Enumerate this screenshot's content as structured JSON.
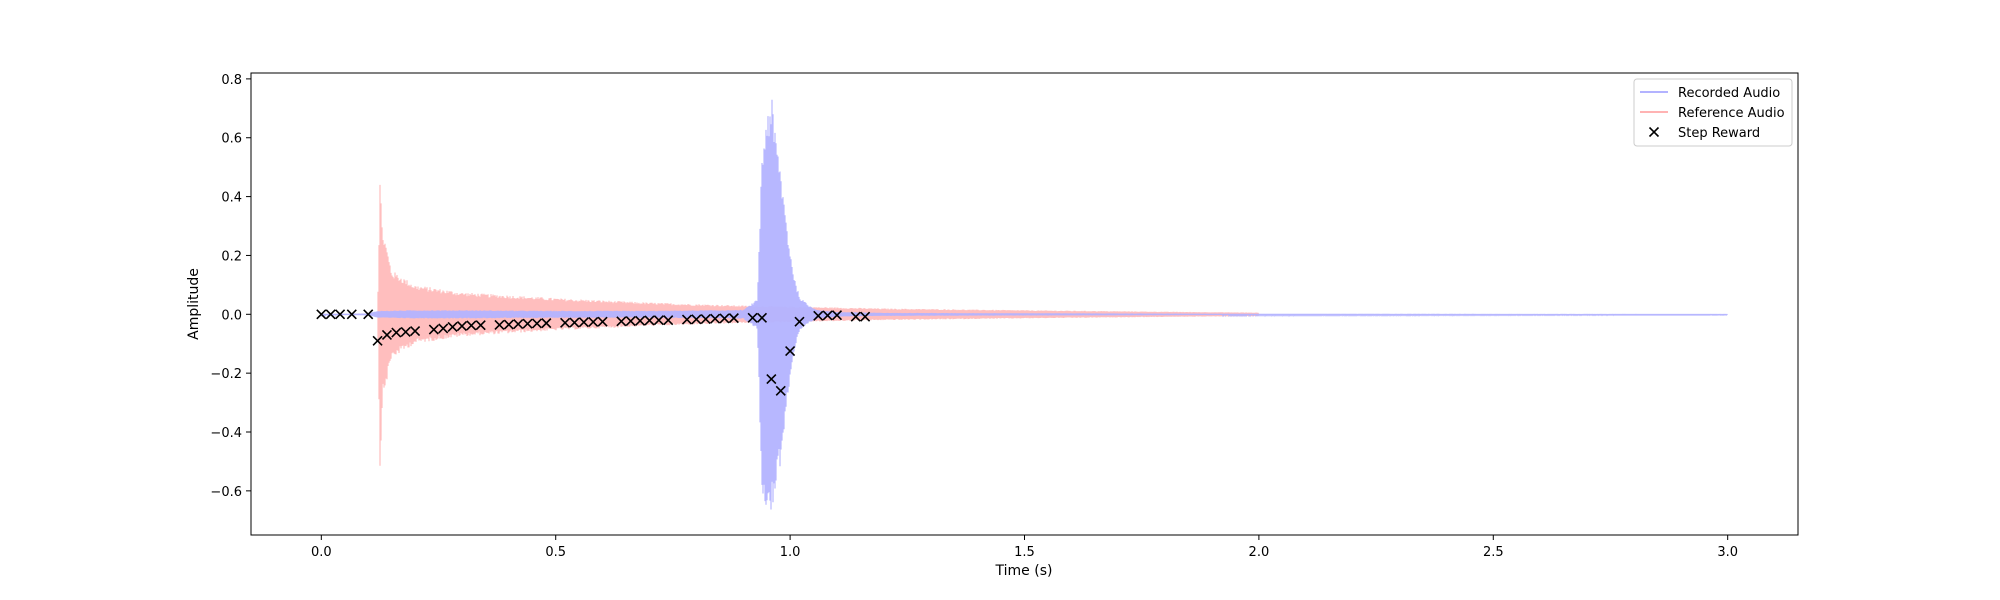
{
  "chart_data": {
    "type": "line",
    "title": "",
    "xlabel": "Time (s)",
    "ylabel": "Amplitude",
    "xlim": [
      -0.15,
      3.15
    ],
    "ylim": [
      -0.75,
      0.82
    ],
    "xticks": [
      0.0,
      0.5,
      1.0,
      1.5,
      2.0,
      2.5,
      3.0
    ],
    "xtick_labels": [
      "0.0",
      "0.5",
      "1.0",
      "1.5",
      "2.0",
      "2.5",
      "3.0"
    ],
    "yticks": [
      -0.6,
      -0.4,
      -0.2,
      0.0,
      0.2,
      0.4,
      0.6,
      0.8
    ],
    "ytick_labels": [
      "−0.6",
      "−0.4",
      "−0.2",
      "0.0",
      "0.2",
      "0.4",
      "0.6",
      "0.8"
    ],
    "grid": false,
    "legend_position": "top-right",
    "series": [
      {
        "name": "Recorded Audio",
        "kind": "line",
        "color": "#b3b3ff",
        "x_range": [
          0.0,
          3.0
        ],
        "envelope": {
          "x": [
            0.0,
            0.1,
            0.12,
            0.2,
            0.3,
            0.5,
            0.7,
            0.9,
            0.93,
            0.94,
            0.95,
            0.96,
            0.97,
            0.98,
            0.99,
            1.0,
            1.01,
            1.02,
            1.04,
            1.06,
            1.1,
            1.2,
            2.0,
            3.0
          ],
          "upper": [
            0.002,
            0.003,
            0.012,
            0.014,
            0.014,
            0.012,
            0.012,
            0.015,
            0.05,
            0.55,
            0.7,
            0.75,
            0.6,
            0.5,
            0.35,
            0.22,
            0.12,
            0.06,
            0.03,
            0.015,
            0.008,
            0.005,
            0.002,
            0.001
          ],
          "lower": [
            -0.002,
            -0.003,
            -0.012,
            -0.014,
            -0.014,
            -0.012,
            -0.012,
            -0.015,
            -0.05,
            -0.6,
            -0.66,
            -0.68,
            -0.62,
            -0.5,
            -0.35,
            -0.22,
            -0.12,
            -0.06,
            -0.03,
            -0.015,
            -0.008,
            -0.005,
            -0.002,
            -0.001
          ]
        }
      },
      {
        "name": "Reference Audio",
        "kind": "line",
        "color": "#ffb3b3",
        "x_range": [
          0.0,
          2.0
        ],
        "envelope": {
          "x": [
            0.0,
            0.12,
            0.125,
            0.13,
            0.15,
            0.2,
            0.3,
            0.5,
            0.7,
            0.9,
            1.0,
            1.2,
            1.5,
            1.8,
            2.0
          ],
          "upper": [
            0.0,
            0.0,
            0.47,
            0.3,
            0.15,
            0.1,
            0.075,
            0.055,
            0.04,
            0.03,
            0.027,
            0.02,
            0.014,
            0.009,
            0.006
          ],
          "lower": [
            0.0,
            0.0,
            -0.54,
            -0.3,
            -0.15,
            -0.1,
            -0.075,
            -0.055,
            -0.04,
            -0.03,
            -0.027,
            -0.02,
            -0.014,
            -0.009,
            -0.006
          ]
        }
      },
      {
        "name": "Step Reward",
        "kind": "scatter",
        "marker": "x",
        "color": "#000000",
        "points": [
          {
            "x": 0.0,
            "y": 0.0
          },
          {
            "x": 0.02,
            "y": 0.0
          },
          {
            "x": 0.04,
            "y": 0.0
          },
          {
            "x": 0.065,
            "y": 0.0
          },
          {
            "x": 0.1,
            "y": 0.0
          },
          {
            "x": 0.12,
            "y": -0.09
          },
          {
            "x": 0.14,
            "y": -0.07
          },
          {
            "x": 0.16,
            "y": -0.062
          },
          {
            "x": 0.18,
            "y": -0.06
          },
          {
            "x": 0.2,
            "y": -0.057
          },
          {
            "x": 0.24,
            "y": -0.052
          },
          {
            "x": 0.26,
            "y": -0.048
          },
          {
            "x": 0.28,
            "y": -0.043
          },
          {
            "x": 0.3,
            "y": -0.04
          },
          {
            "x": 0.32,
            "y": -0.038
          },
          {
            "x": 0.34,
            "y": -0.037
          },
          {
            "x": 0.38,
            "y": -0.036
          },
          {
            "x": 0.4,
            "y": -0.035
          },
          {
            "x": 0.42,
            "y": -0.033
          },
          {
            "x": 0.44,
            "y": -0.032
          },
          {
            "x": 0.46,
            "y": -0.031
          },
          {
            "x": 0.48,
            "y": -0.03
          },
          {
            "x": 0.52,
            "y": -0.029
          },
          {
            "x": 0.54,
            "y": -0.028
          },
          {
            "x": 0.56,
            "y": -0.027
          },
          {
            "x": 0.58,
            "y": -0.026
          },
          {
            "x": 0.6,
            "y": -0.025
          },
          {
            "x": 0.64,
            "y": -0.024
          },
          {
            "x": 0.66,
            "y": -0.023
          },
          {
            "x": 0.68,
            "y": -0.022
          },
          {
            "x": 0.7,
            "y": -0.021
          },
          {
            "x": 0.72,
            "y": -0.02
          },
          {
            "x": 0.74,
            "y": -0.02
          },
          {
            "x": 0.78,
            "y": -0.018
          },
          {
            "x": 0.8,
            "y": -0.017
          },
          {
            "x": 0.82,
            "y": -0.016
          },
          {
            "x": 0.84,
            "y": -0.015
          },
          {
            "x": 0.86,
            "y": -0.014
          },
          {
            "x": 0.88,
            "y": -0.013
          },
          {
            "x": 0.92,
            "y": -0.012
          },
          {
            "x": 0.94,
            "y": -0.012
          },
          {
            "x": 0.96,
            "y": -0.22
          },
          {
            "x": 0.98,
            "y": -0.26
          },
          {
            "x": 1.0,
            "y": -0.125
          },
          {
            "x": 1.02,
            "y": -0.025
          },
          {
            "x": 1.06,
            "y": -0.005
          },
          {
            "x": 1.08,
            "y": -0.004
          },
          {
            "x": 1.1,
            "y": -0.003
          },
          {
            "x": 1.14,
            "y": -0.008
          },
          {
            "x": 1.16,
            "y": -0.008
          }
        ]
      }
    ]
  }
}
